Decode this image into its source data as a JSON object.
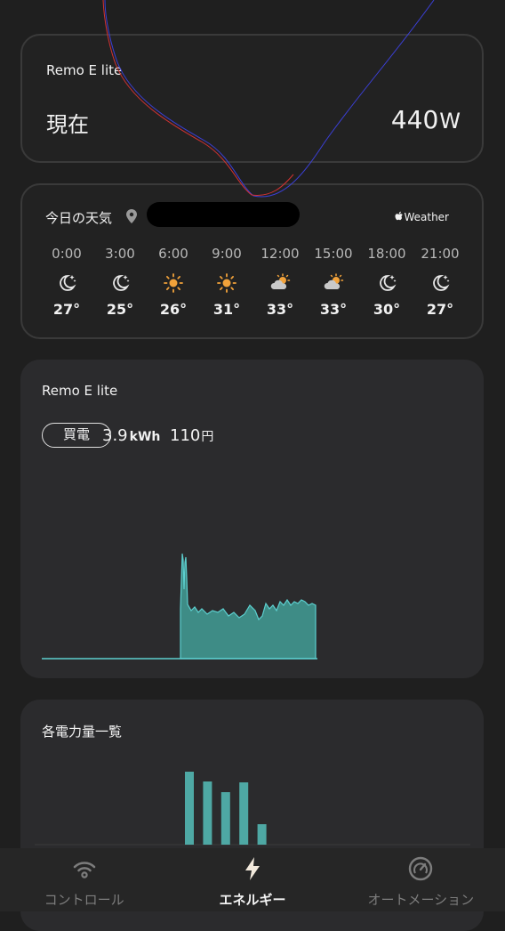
{
  "power": {
    "title": "Remo E lite",
    "now_label": "現在",
    "value": "440",
    "unit": "W"
  },
  "weather": {
    "title": "今日の天気",
    "attribution": "Weather",
    "forecast": [
      {
        "time": "0:00",
        "icon": "moon-stars-icon",
        "temp": "27°"
      },
      {
        "time": "3:00",
        "icon": "moon-stars-icon",
        "temp": "25°"
      },
      {
        "time": "6:00",
        "icon": "sun-icon",
        "temp": "26°"
      },
      {
        "time": "9:00",
        "icon": "sun-icon",
        "temp": "31°"
      },
      {
        "time": "12:00",
        "icon": "sun-cloud-icon",
        "temp": "33°"
      },
      {
        "time": "15:00",
        "icon": "sun-cloud-icon",
        "temp": "33°"
      },
      {
        "time": "18:00",
        "icon": "moon-stars-icon",
        "temp": "30°"
      },
      {
        "time": "21:00",
        "icon": "moon-stars-icon",
        "temp": "27°"
      }
    ]
  },
  "usage": {
    "title": "Remo E lite",
    "badge": "買電",
    "energy": "3.9",
    "energy_unit": "kWh",
    "cost": "110",
    "cost_unit": "円",
    "accent": "#5ccfcf"
  },
  "list": {
    "title": "各電力量一覧",
    "bar_color": "#4ea8a4",
    "values": [
      82,
      71,
      59,
      70,
      23
    ]
  },
  "nav": {
    "tabs": [
      {
        "label": "コントロール",
        "icon": "wifi-icon",
        "active": false
      },
      {
        "label": "エネルギー",
        "icon": "bolt-icon",
        "active": true
      },
      {
        "label": "オートメーション",
        "icon": "gauge-icon",
        "active": false
      }
    ]
  }
}
